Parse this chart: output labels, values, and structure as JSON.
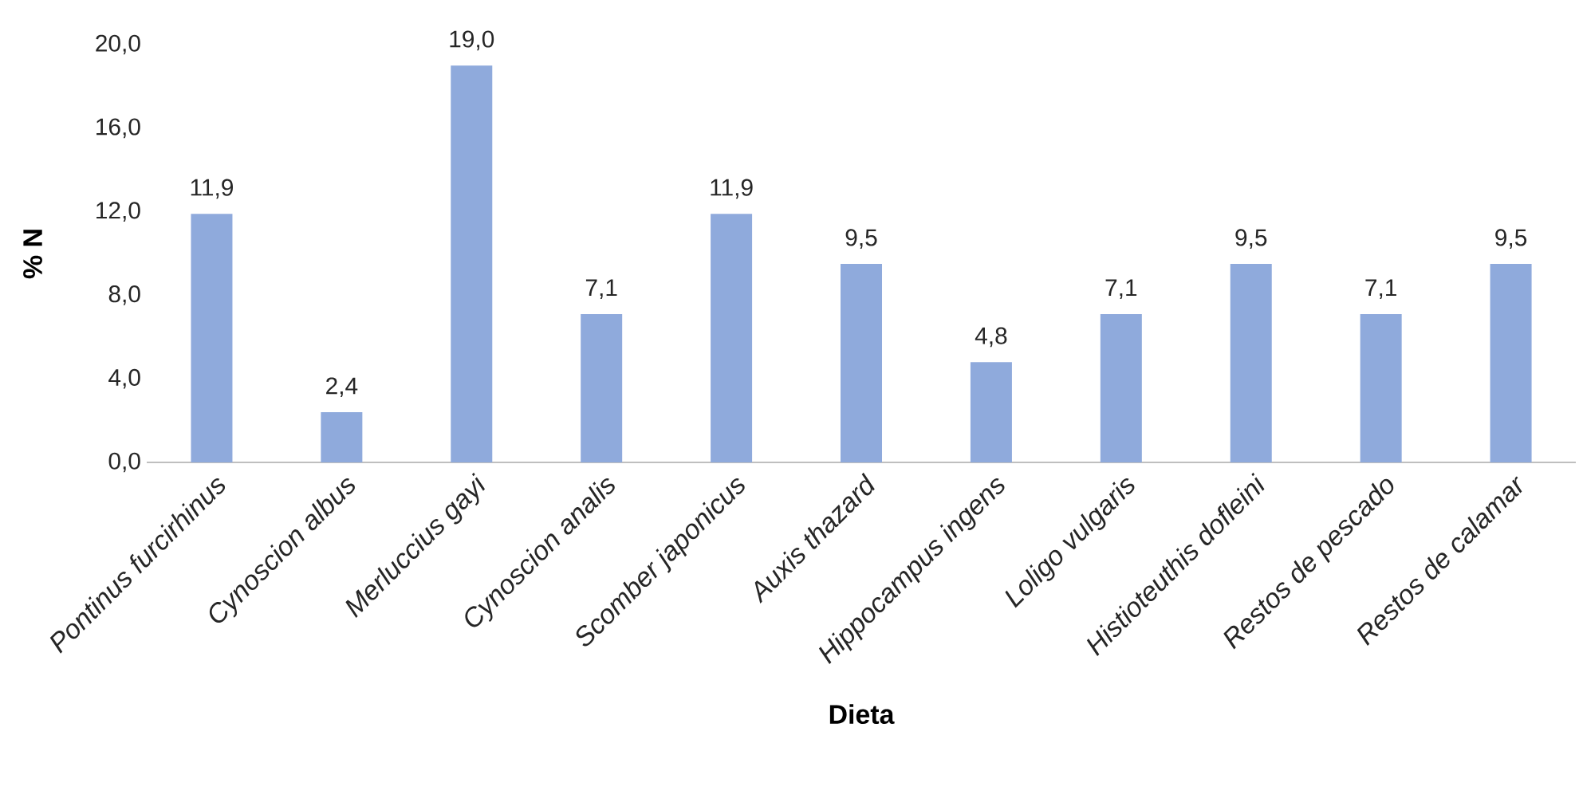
{
  "chart_data": {
    "type": "bar",
    "xlabel": "Dieta",
    "ylabel": "% N",
    "categories": [
      "*Pontinus furcirhinus*",
      "*Cynoscion albus*",
      "*Merluccius gayi*",
      "*Cynoscion analis*",
      "*Scomber japonicus*",
      "*Auxis thazard*",
      "*Hippocampus ingens*",
      "*Loligo vulgaris*",
      "*Histioteuthis dofleini*",
      "*Restos de pescado*",
      "*Restos de calamar*"
    ],
    "values": [
      11.9,
      2.4,
      19.0,
      7.1,
      11.9,
      9.5,
      4.8,
      7.1,
      9.5,
      7.1,
      9.5
    ],
    "value_labels": [
      "11,9",
      "2,4",
      "19,0",
      "7,1",
      "11,9",
      "9,5",
      "4,8",
      "7,1",
      "9,5",
      "7,1",
      "9,5"
    ],
    "color": "#8faadc",
    "ylim": [
      0,
      20
    ],
    "yticks": [
      {
        "value": 0,
        "label": "0,0"
      },
      {
        "value": 4,
        "label": "4,0"
      },
      {
        "value": 8,
        "label": "8,0"
      },
      {
        "value": 12,
        "label": "12,0"
      },
      {
        "value": 16,
        "label": "16,0"
      },
      {
        "value": 20,
        "label": "20,0"
      }
    ],
    "grid": false
  }
}
